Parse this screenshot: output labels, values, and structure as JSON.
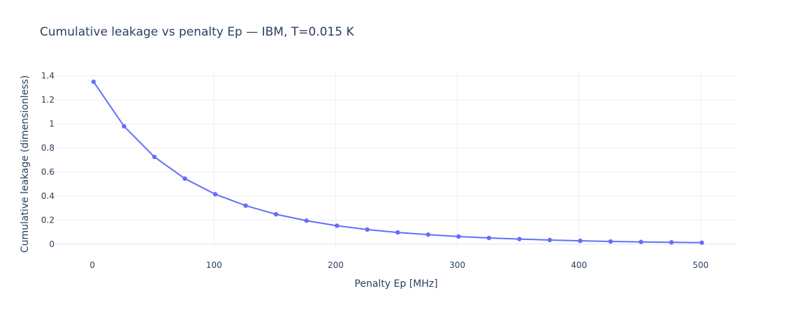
{
  "chart_data": {
    "type": "line",
    "title": "Cumulative leakage vs penalty Ep — IBM, T=0.015 K",
    "xlabel": "Penalty Ep [MHz]",
    "ylabel": "Cumulative leakage (dimensionless)",
    "xlim": [
      -30,
      530
    ],
    "ylim": [
      -0.03,
      1.45
    ],
    "xticks": [
      0,
      100,
      200,
      300,
      400,
      500
    ],
    "yticks": [
      0,
      0.2,
      0.4,
      0.6,
      0.8,
      1,
      1.2,
      1.4
    ],
    "grid": true,
    "legend": "none",
    "series": [
      {
        "color": "#636efa",
        "x": [
          1,
          26,
          51,
          76,
          101,
          126,
          151,
          176,
          201,
          226,
          251,
          276,
          301,
          326,
          351,
          376,
          401,
          426,
          451,
          476,
          501
        ],
        "y": [
          1.35,
          0.98,
          0.725,
          0.545,
          0.415,
          0.32,
          0.248,
          0.195,
          0.153,
          0.121,
          0.097,
          0.079,
          0.063,
          0.051,
          0.042,
          0.034,
          0.027,
          0.022,
          0.018,
          0.015,
          0.012
        ]
      }
    ]
  }
}
